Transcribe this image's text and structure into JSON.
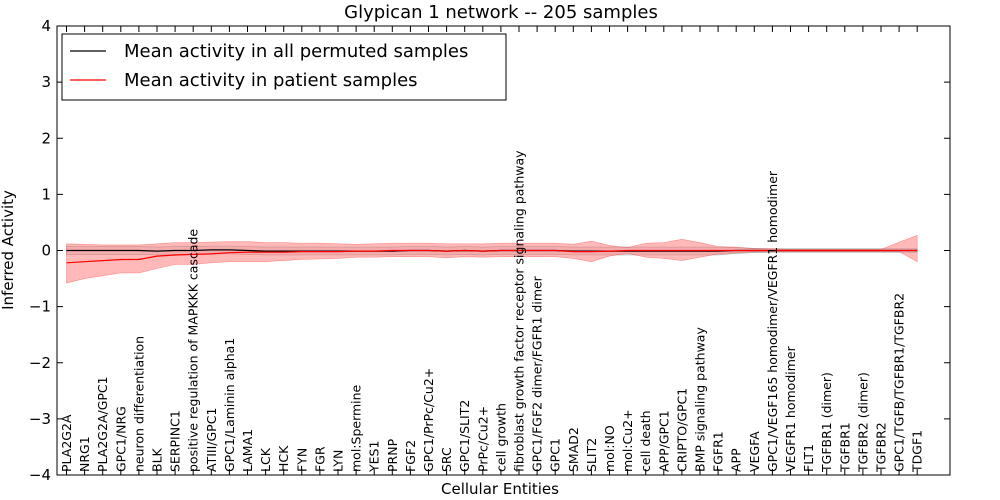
{
  "chart_data": {
    "type": "line",
    "title": "Glypican 1 network -- 205 samples",
    "xlabel": "Cellular Entities",
    "ylabel": "Inferred Activity",
    "ylim": [
      -4,
      4
    ],
    "yticks": [
      -4,
      -3,
      -2,
      -1,
      0,
      1,
      2,
      3,
      4
    ],
    "legend_position": "top-left",
    "categories": [
      "PLA2G2A",
      "NRG1",
      "PLA2G2A/GPC1",
      "GPC1/NRG",
      "neuron differentiation",
      "BLK",
      "SERPINC1",
      "positive regulation of MAPKKK cascade",
      "ATIII/GPC1",
      "GPC1/Laminin alpha1",
      "LAMA1",
      "LCK",
      "HCK",
      "FYN",
      "FGR",
      "LYN",
      "mol:Spermine",
      "YES1",
      "PRNP",
      "FGF2",
      "GPC1/PrPc/Cu2+",
      "SRC",
      "GPC1/SLIT2",
      "PrPc/Cu2+",
      "cell growth",
      "fibroblast growth factor receptor signaling pathway",
      "GPC1/FGF2 dimer/FGFR1 dimer",
      "GPC1",
      "SMAD2",
      "SLIT2",
      "mol:NO",
      "mol:Cu2+",
      "cell death",
      "APP/GPC1",
      "CRIPTO/GPC1",
      "BMP signaling pathway",
      "FGFR1",
      "APP",
      "VEGFA",
      "GPC1/VEGF165 homodimer/VEGFR1 homodimer",
      "VEGFR1 homodimer",
      "FLT1",
      "TGFBR1 (dimer)",
      "TGFBR1",
      "TGFBR2 (dimer)",
      "TGFBR2",
      "GPC1/TGFB/TGFBR1/TGFBR2",
      "TDGF1"
    ],
    "series": [
      {
        "name": "Mean activity in all permuted samples",
        "color": "#000000",
        "band_color": "#bfbfbf",
        "values": [
          0.0,
          0.0,
          0.0,
          0.0,
          0.0,
          -0.01,
          0.0,
          0.0,
          0.01,
          0.01,
          0.0,
          -0.01,
          -0.01,
          -0.01,
          -0.01,
          -0.01,
          -0.01,
          -0.01,
          -0.01,
          0.0,
          0.0,
          -0.01,
          0.0,
          -0.01,
          0.0,
          0.0,
          0.0,
          0.0,
          -0.01,
          -0.01,
          -0.01,
          -0.01,
          -0.01,
          -0.01,
          -0.01,
          -0.01,
          -0.01,
          0.0,
          0.0,
          0.0,
          0.0,
          0.0,
          0.0,
          0.0,
          0.0,
          0.0,
          0.0,
          0.0
        ],
        "lower": [
          -0.07,
          -0.07,
          -0.07,
          -0.07,
          -0.07,
          -0.08,
          -0.07,
          -0.07,
          -0.06,
          -0.06,
          -0.07,
          -0.08,
          -0.08,
          -0.08,
          -0.08,
          -0.08,
          -0.08,
          -0.08,
          -0.08,
          -0.07,
          -0.07,
          -0.08,
          -0.07,
          -0.08,
          -0.07,
          -0.07,
          -0.07,
          -0.07,
          -0.08,
          -0.08,
          -0.08,
          -0.08,
          -0.08,
          -0.08,
          -0.08,
          -0.08,
          -0.08,
          -0.05,
          -0.04,
          -0.03,
          -0.03,
          -0.03,
          -0.03,
          -0.03,
          -0.03,
          -0.03,
          -0.03,
          -0.03
        ],
        "upper": [
          0.07,
          0.07,
          0.07,
          0.07,
          0.07,
          0.06,
          0.07,
          0.07,
          0.08,
          0.08,
          0.07,
          0.06,
          0.06,
          0.06,
          0.06,
          0.06,
          0.06,
          0.06,
          0.06,
          0.07,
          0.07,
          0.06,
          0.07,
          0.06,
          0.07,
          0.07,
          0.07,
          0.07,
          0.06,
          0.06,
          0.06,
          0.06,
          0.06,
          0.06,
          0.06,
          0.06,
          0.06,
          0.05,
          0.04,
          0.03,
          0.03,
          0.03,
          0.03,
          0.03,
          0.03,
          0.03,
          0.03,
          0.03
        ]
      },
      {
        "name": "Mean activity in patient samples",
        "color": "#ff0000",
        "band_color": "#ff8080",
        "values": [
          -0.22,
          -0.2,
          -0.18,
          -0.16,
          -0.16,
          -0.1,
          -0.08,
          -0.07,
          -0.06,
          -0.04,
          -0.03,
          -0.03,
          -0.03,
          -0.02,
          -0.02,
          -0.02,
          -0.01,
          -0.01,
          0.0,
          0.0,
          0.0,
          -0.01,
          0.0,
          -0.01,
          0.0,
          0.0,
          0.0,
          0.0,
          -0.02,
          -0.02,
          -0.01,
          0.0,
          0.0,
          0.0,
          0.0,
          0.0,
          0.0,
          0.0,
          0.0,
          0.0,
          0.0,
          0.0,
          0.0,
          0.0,
          0.0,
          0.0,
          0.0,
          0.0
        ],
        "lower": [
          -0.58,
          -0.5,
          -0.45,
          -0.4,
          -0.4,
          -0.32,
          -0.25,
          -0.25,
          -0.22,
          -0.2,
          -0.2,
          -0.2,
          -0.18,
          -0.16,
          -0.15,
          -0.14,
          -0.12,
          -0.12,
          -0.11,
          -0.11,
          -0.11,
          -0.13,
          -0.11,
          -0.12,
          -0.11,
          -0.11,
          -0.11,
          -0.11,
          -0.14,
          -0.2,
          -0.1,
          -0.05,
          -0.12,
          -0.14,
          -0.18,
          -0.12,
          -0.06,
          -0.04,
          -0.02,
          -0.02,
          -0.02,
          -0.02,
          -0.02,
          -0.02,
          -0.02,
          -0.02,
          -0.02,
          -0.2
        ],
        "upper": [
          0.12,
          0.11,
          0.1,
          0.1,
          0.1,
          0.12,
          0.14,
          0.14,
          0.15,
          0.16,
          0.16,
          0.14,
          0.14,
          0.13,
          0.13,
          0.12,
          0.11,
          0.12,
          0.13,
          0.13,
          0.13,
          0.12,
          0.12,
          0.12,
          0.13,
          0.13,
          0.13,
          0.13,
          0.11,
          0.17,
          0.09,
          0.05,
          0.13,
          0.14,
          0.2,
          0.14,
          0.07,
          0.06,
          0.03,
          0.03,
          0.02,
          0.02,
          0.02,
          0.02,
          0.02,
          0.02,
          0.15,
          0.27
        ]
      }
    ]
  }
}
